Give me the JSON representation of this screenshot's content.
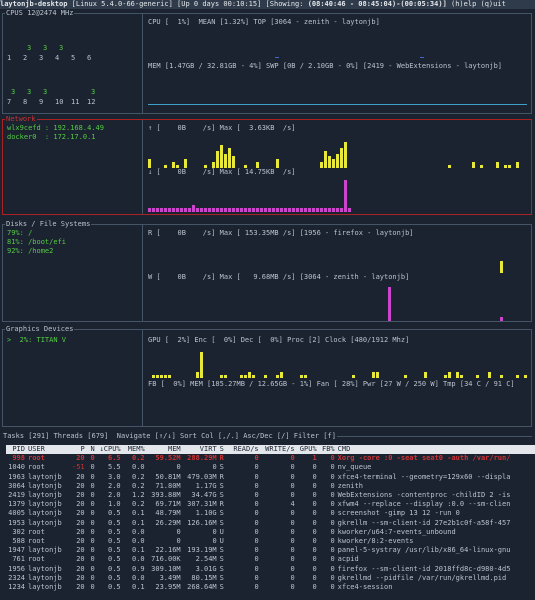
{
  "titlebar": {
    "host": "laytonjb-desktop",
    "kernel": "[Linux 5.4.0-66-generic]",
    "uptime": "[Up 0 days 00:10:15]",
    "showing": "[Showing:",
    "range": "(08:40:46 - 08:45:04)-(00:05:34)]",
    "help": "(h)elp (q)uit"
  },
  "cpu": {
    "pane_title": "CPUS 12@2474 MHz",
    "cores": [
      {
        "label": "1",
        "val": ""
      },
      {
        "label": "2",
        "val": "3"
      },
      {
        "label": "3",
        "val": "3"
      },
      {
        "label": "4",
        "val": "3"
      },
      {
        "label": "5",
        "val": ""
      },
      {
        "label": "6",
        "val": ""
      },
      {
        "label": "7",
        "val": "3"
      },
      {
        "label": "8",
        "val": "3"
      },
      {
        "label": "9",
        "val": "3"
      },
      {
        "label": "10",
        "val": ""
      },
      {
        "label": "11",
        "val": ""
      },
      {
        "label": "12",
        "val": "3"
      }
    ],
    "cpu_line": "CPU [  1%]  MEAN [1.32%] TOP [3064 - zenith - laytonjb]",
    "mem_line": "MEM [1.47GB / 32.81GB - 4%] SWP [0B / 2.10GB - 0%] [2419 - WebExtensions - laytonjb]"
  },
  "network": {
    "pane_title": "Network",
    "interfaces": [
      "wlx9cefd : 192.168.4.49",
      "docker0  : 172.17.0.1"
    ],
    "up_line": "↑ [    0B    /s] Max [  3.63KB  /s]",
    "down_line": "↓ [    0B    /s] Max [ 14.75KB  /s]"
  },
  "disks": {
    "pane_title": "Disks / File Systems",
    "filesystems": [
      "79%: /",
      "81%: /boot/efi",
      "92%: /home2"
    ],
    "read_line": "R [    0B    /s] Max [ 153.35MB /s] [1956 - firefox - laytonjb]",
    "write_line": "W [    0B    /s] Max [   9.68MB /s] [3064 - zenith - laytonjb]"
  },
  "gpu": {
    "pane_title": "Graphics Devices",
    "devices": [
      ">  2%: TITAN V"
    ],
    "top_line": "GPU [  2%] Enc [  0%] Dec [  0%] Proc [2] Clock [480/1912 Mhz]",
    "bottom_line": "FB [  0%] MEM [185.27MB / 12.65GB - 1%] Fan [ 28%] Pwr [27 W / 250 W] Tmp [34 C / 91 C]"
  },
  "tasks": {
    "pane_title": "Tasks [291] Threads [679]  Navigate [↑/↓] Sort Col [,/.] Asc/Dec [/] Filter [f]",
    "columns": [
      "PID",
      "USER",
      "P",
      "N",
      "↓CPU%",
      "MEM%",
      "MEM",
      "VIRT",
      "S",
      "READ/s",
      "WRITE/s",
      "GPU%",
      "FB%",
      "CMD"
    ],
    "rows": [
      [
        "998",
        "root",
        "20",
        "0",
        "6.5",
        "0.2",
        "59.52M",
        "288.29M",
        "R",
        "0",
        "0",
        "1",
        "0",
        "Xorg -core :0 -seat seat0 -auth /var/run/"
      ],
      [
        "1040",
        "root",
        "-51",
        "0",
        "5.5",
        "0.0",
        "0",
        "0",
        "S",
        "0",
        "0",
        "0",
        "0",
        "nv_queue"
      ],
      [
        "1963",
        "laytonjb",
        "20",
        "0",
        "3.0",
        "0.2",
        "50.81M",
        "479.03M",
        "R",
        "0",
        "0",
        "0",
        "0",
        "xfce4-terminal --geometry=129x60 --displa"
      ],
      [
        "3064",
        "laytonjb",
        "20",
        "0",
        "2.0",
        "0.2",
        "71.80M",
        "1.17G",
        "S",
        "0",
        "0",
        "0",
        "0",
        "zenith"
      ],
      [
        "2419",
        "laytonjb",
        "20",
        "0",
        "2.0",
        "1.2",
        "393.88M",
        "34.47G",
        "S",
        "0",
        "0",
        "0",
        "0",
        "WebExtensions -contentproc -childID 2 -is"
      ],
      [
        "1379",
        "laytonjb",
        "20",
        "0",
        "1.0",
        "0.2",
        "69.71M",
        "307.31M",
        "R",
        "0",
        "4",
        "0",
        "0",
        "xfwm4 --replace --display :0.0 --sm-clien"
      ],
      [
        "4005",
        "laytonjb",
        "20",
        "0",
        "0.5",
        "0.1",
        "48.79M",
        "1.10G",
        "S",
        "0",
        "0",
        "0",
        "0",
        "screenshot -gimp 13 12 -run 0"
      ],
      [
        "1953",
        "laytonjb",
        "20",
        "0",
        "0.5",
        "0.1",
        "26.29M",
        "126.16M",
        "S",
        "0",
        "0",
        "0",
        "0",
        "gkrellm --sm-client-id 27e2b1c0f-a58f-457"
      ],
      [
        "302",
        "root",
        "20",
        "0",
        "0.5",
        "0.0",
        "0",
        "0",
        "U",
        "0",
        "0",
        "0",
        "0",
        "kworker/u64:7-events_unbound"
      ],
      [
        "588",
        "root",
        "20",
        "0",
        "0.5",
        "0.0",
        "0",
        "0",
        "U",
        "0",
        "0",
        "0",
        "0",
        "kworker/8:2-events"
      ],
      [
        "1947",
        "laytonjb",
        "20",
        "0",
        "0.5",
        "0.1",
        "22.16M",
        "193.19M",
        "S",
        "0",
        "0",
        "0",
        "0",
        "panel-5-systray /usr/lib/x86_64-linux-gnu"
      ],
      [
        "761",
        "root",
        "20",
        "0",
        "0.5",
        "0.0",
        "716.00K",
        "2.54M",
        "S",
        "0",
        "0",
        "0",
        "0",
        "acpid"
      ],
      [
        "1956",
        "laytonjb",
        "20",
        "0",
        "0.5",
        "0.9",
        "309.10M",
        "3.01G",
        "S",
        "0",
        "0",
        "0",
        "0",
        "firefox --sm-client-id 2018ffd8c-d980-4d5"
      ],
      [
        "2324",
        "laytonjb",
        "20",
        "0",
        "0.5",
        "0.0",
        "3.49M",
        "80.15M",
        "S",
        "0",
        "0",
        "0",
        "0",
        "gkrellmd --pidfile /var/run/gkrellmd.pid"
      ],
      [
        "1234",
        "laytonjb",
        "20",
        "0",
        "0.5",
        "0.1",
        "23.95M",
        "268.64M",
        "S",
        "0",
        "0",
        "0",
        "0",
        "xfce4-session"
      ]
    ]
  },
  "sparklines": {
    "net_up": [
      3,
      0,
      0,
      0,
      1,
      0,
      2,
      1,
      0,
      3,
      0,
      0,
      0,
      0,
      1,
      0,
      2,
      6,
      8,
      5,
      7,
      4,
      0,
      0,
      1,
      0,
      0,
      2,
      0,
      0,
      0,
      0,
      3,
      0,
      0,
      0,
      0,
      0,
      0,
      0,
      0,
      0,
      0,
      2,
      6,
      4,
      3,
      5,
      7,
      9,
      0,
      0,
      0,
      0,
      0,
      0,
      0,
      0,
      0,
      0,
      0,
      0,
      0,
      0,
      0,
      0,
      0,
      0,
      0,
      0,
      0,
      0,
      0,
      0,
      0,
      1,
      0,
      0,
      0,
      0,
      0,
      2,
      0,
      1,
      0,
      0,
      0,
      2,
      0,
      1,
      1,
      0,
      2,
      0,
      0
    ],
    "net_down": [
      1,
      1,
      1,
      1,
      1,
      1,
      1,
      1,
      1,
      1,
      1,
      2,
      1,
      1,
      1,
      1,
      1,
      1,
      1,
      1,
      1,
      1,
      1,
      1,
      1,
      1,
      1,
      1,
      1,
      1,
      1,
      1,
      1,
      1,
      1,
      1,
      1,
      1,
      1,
      1,
      1,
      1,
      1,
      1,
      1,
      1,
      1,
      1,
      1,
      9,
      1,
      0,
      0,
      0,
      0,
      0,
      0,
      0,
      0,
      0,
      0,
      0,
      0,
      0,
      0,
      0,
      0,
      0,
      0,
      0,
      0,
      0,
      0,
      0,
      0,
      0,
      0,
      0,
      0,
      0,
      0,
      0,
      0,
      0,
      0,
      0,
      0,
      0,
      0,
      0,
      0,
      0,
      0,
      0,
      0,
      0
    ],
    "disk_read": [
      0,
      0,
      0,
      0,
      0,
      0,
      0,
      0,
      0,
      0,
      0,
      0,
      0,
      0,
      0,
      0,
      0,
      0,
      0,
      0,
      0,
      0,
      0,
      0,
      0,
      0,
      0,
      0,
      0,
      0,
      0,
      0,
      0,
      0,
      0,
      0,
      0,
      0,
      0,
      0,
      0,
      0,
      0,
      0,
      0,
      0,
      0,
      0,
      0,
      0,
      0,
      0,
      0,
      0,
      0,
      0,
      0,
      0,
      0,
      0,
      0,
      0,
      0,
      0,
      0,
      0,
      0,
      0,
      0,
      0,
      0,
      0,
      0,
      0,
      0,
      0,
      0,
      0,
      0,
      0,
      0,
      0,
      0,
      0,
      0,
      0,
      0,
      0,
      3,
      0,
      0,
      0,
      0,
      0,
      0
    ],
    "disk_write": [
      0,
      0,
      0,
      0,
      0,
      0,
      0,
      0,
      0,
      0,
      0,
      0,
      0,
      0,
      0,
      0,
      0,
      0,
      0,
      0,
      0,
      0,
      0,
      0,
      0,
      0,
      0,
      0,
      0,
      0,
      0,
      0,
      0,
      0,
      0,
      0,
      0,
      0,
      0,
      0,
      0,
      0,
      0,
      0,
      0,
      0,
      0,
      0,
      0,
      0,
      0,
      0,
      0,
      0,
      0,
      0,
      0,
      0,
      0,
      0,
      9,
      0,
      0,
      0,
      0,
      0,
      0,
      0,
      0,
      0,
      0,
      0,
      0,
      0,
      0,
      0,
      0,
      0,
      0,
      0,
      0,
      0,
      0,
      0,
      0,
      0,
      0,
      0,
      1,
      0,
      0,
      0,
      0,
      0,
      0
    ],
    "gpu": [
      0,
      1,
      1,
      1,
      1,
      1,
      0,
      0,
      0,
      0,
      0,
      0,
      2,
      9,
      0,
      0,
      0,
      0,
      1,
      1,
      0,
      0,
      0,
      1,
      1,
      2,
      1,
      0,
      0,
      1,
      0,
      0,
      1,
      2,
      0,
      0,
      0,
      0,
      1,
      1,
      0,
      0,
      0,
      0,
      0,
      0,
      0,
      0,
      0,
      0,
      0,
      1,
      0,
      0,
      0,
      0,
      2,
      2,
      0,
      0,
      0,
      0,
      0,
      0,
      1,
      0,
      0,
      0,
      0,
      2,
      0,
      0,
      0,
      0,
      1,
      2,
      0,
      2,
      1,
      0,
      0,
      0,
      1,
      0,
      0,
      2,
      0,
      0,
      1,
      0,
      0,
      0,
      1,
      0,
      1,
      0
    ]
  }
}
